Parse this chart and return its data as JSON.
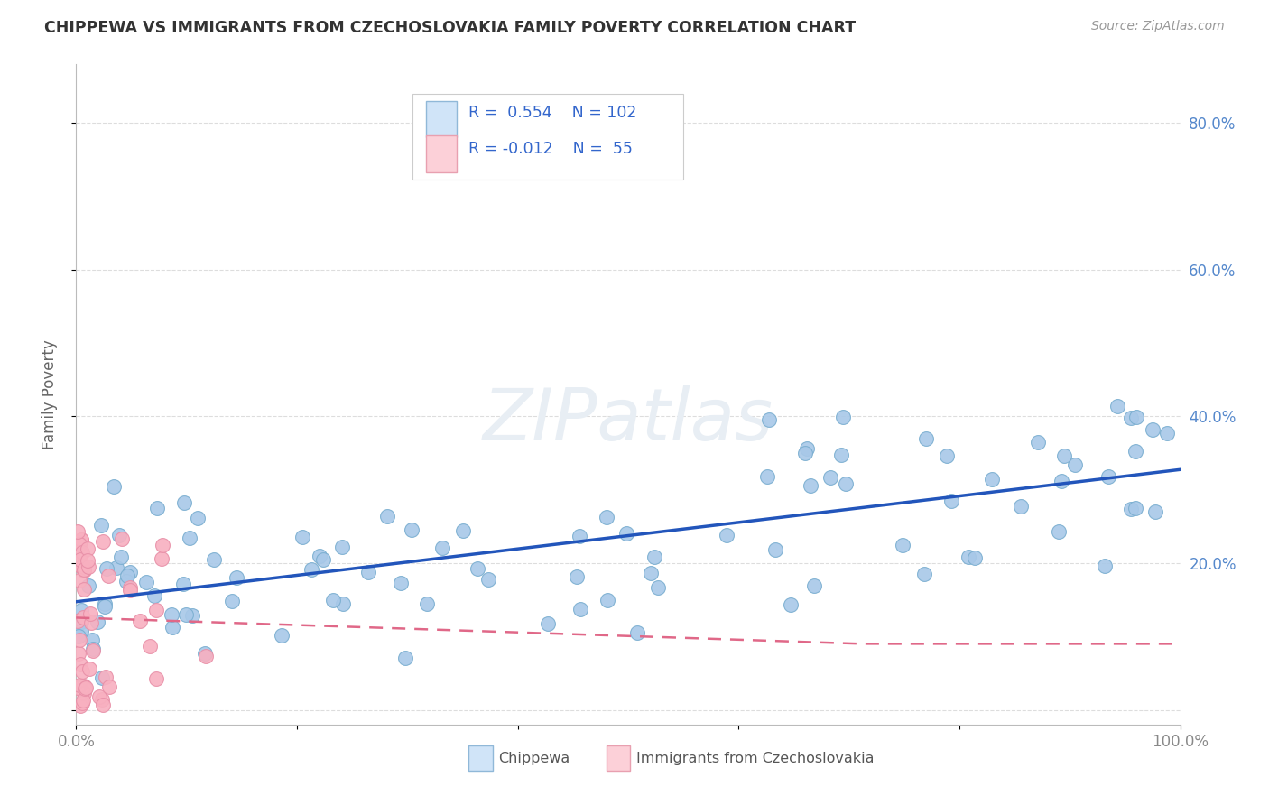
{
  "title": "CHIPPEWA VS IMMIGRANTS FROM CZECHOSLOVAKIA FAMILY POVERTY CORRELATION CHART",
  "source": "Source: ZipAtlas.com",
  "ylabel": "Family Poverty",
  "xlim": [
    0,
    1.0
  ],
  "ylim": [
    -0.02,
    0.88
  ],
  "x_tick_labels": [
    "0.0%",
    "",
    "",
    "",
    "",
    "100.0%"
  ],
  "y_tick_labels": [
    "",
    "20.0%",
    "40.0%",
    "60.0%",
    "80.0%"
  ],
  "chippewa_R": 0.554,
  "chippewa_N": 102,
  "czech_R": -0.012,
  "czech_N": 55,
  "chippewa_color": "#a8c8e8",
  "chippewa_edge_color": "#7aaed0",
  "chippewa_line_color": "#2255bb",
  "czech_color": "#f8b0c0",
  "czech_edge_color": "#e890a8",
  "czech_line_color": "#e06888",
  "legend_fill_chippewa": "#d0e4f8",
  "legend_fill_czech": "#fcd0d8",
  "legend_edge_chippewa": "#90b8d8",
  "legend_edge_czech": "#e8a0b0",
  "watermark_color": "#e8eef4",
  "background_color": "#ffffff",
  "grid_color": "#dddddd",
  "tick_color_y": "#5588cc",
  "tick_color_x": "#888888",
  "title_color": "#333333",
  "source_color": "#999999",
  "ylabel_color": "#666666"
}
